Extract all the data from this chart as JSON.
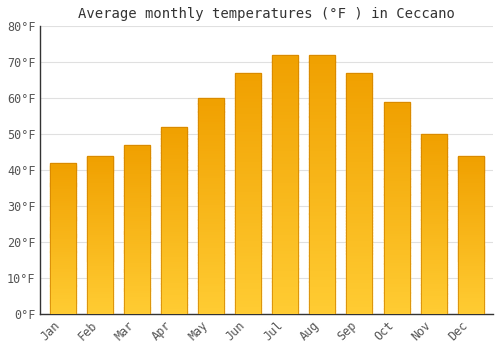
{
  "title": "Average monthly temperatures (°F ) in Ceccano",
  "months": [
    "Jan",
    "Feb",
    "Mar",
    "Apr",
    "May",
    "Jun",
    "Jul",
    "Aug",
    "Sep",
    "Oct",
    "Nov",
    "Dec"
  ],
  "values": [
    42,
    44,
    47,
    52,
    60,
    67,
    72,
    72,
    67,
    59,
    50,
    44
  ],
  "bar_color_top": "#F5A800",
  "bar_color_bottom": "#FFCC33",
  "ylim": [
    0,
    80
  ],
  "yticks": [
    0,
    10,
    20,
    30,
    40,
    50,
    60,
    70,
    80
  ],
  "ytick_labels": [
    "0°F",
    "10°F",
    "20°F",
    "30°F",
    "40°F",
    "50°F",
    "60°F",
    "70°F",
    "80°F"
  ],
  "background_color": "#FFFFFF",
  "grid_color": "#E0E0E0",
  "title_fontsize": 10,
  "tick_fontsize": 8.5,
  "bar_width": 0.7,
  "n_grad": 80
}
